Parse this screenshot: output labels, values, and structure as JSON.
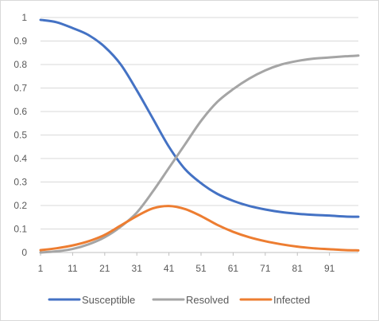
{
  "chart_data": {
    "type": "line",
    "title": "",
    "xlabel": "",
    "ylabel": "",
    "ylim": [
      0,
      1
    ],
    "y_ticks": [
      "0",
      "0.1",
      "0.2",
      "0.3",
      "0.4",
      "0.5",
      "0.6",
      "0.7",
      "0.8",
      "0.9",
      "1"
    ],
    "x_ticks": [
      "1",
      "11",
      "21",
      "31",
      "41",
      "51",
      "61",
      "71",
      "81",
      "91"
    ],
    "xlim": [
      1,
      100
    ],
    "grid": true,
    "legend_position": "bottom",
    "x": [
      1,
      6,
      11,
      16,
      21,
      26,
      31,
      36,
      41,
      46,
      51,
      56,
      61,
      66,
      71,
      76,
      81,
      86,
      91,
      96,
      100
    ],
    "series": [
      {
        "name": "Susceptible",
        "color": "#4472C4",
        "values": [
          0.99,
          0.98,
          0.955,
          0.925,
          0.875,
          0.8,
          0.69,
          0.57,
          0.45,
          0.355,
          0.295,
          0.25,
          0.22,
          0.198,
          0.183,
          0.172,
          0.165,
          0.16,
          0.157,
          0.153,
          0.152
        ]
      },
      {
        "name": "Resolved",
        "color": "#A5A5A5",
        "values": [
          0.0,
          0.005,
          0.015,
          0.035,
          0.065,
          0.11,
          0.17,
          0.26,
          0.36,
          0.46,
          0.56,
          0.64,
          0.695,
          0.74,
          0.775,
          0.8,
          0.815,
          0.825,
          0.83,
          0.835,
          0.838
        ]
      },
      {
        "name": "Infected",
        "color": "#ED7D31",
        "values": [
          0.01,
          0.018,
          0.03,
          0.048,
          0.075,
          0.115,
          0.155,
          0.188,
          0.198,
          0.185,
          0.155,
          0.118,
          0.088,
          0.065,
          0.048,
          0.035,
          0.025,
          0.018,
          0.014,
          0.01,
          0.009
        ]
      }
    ]
  }
}
